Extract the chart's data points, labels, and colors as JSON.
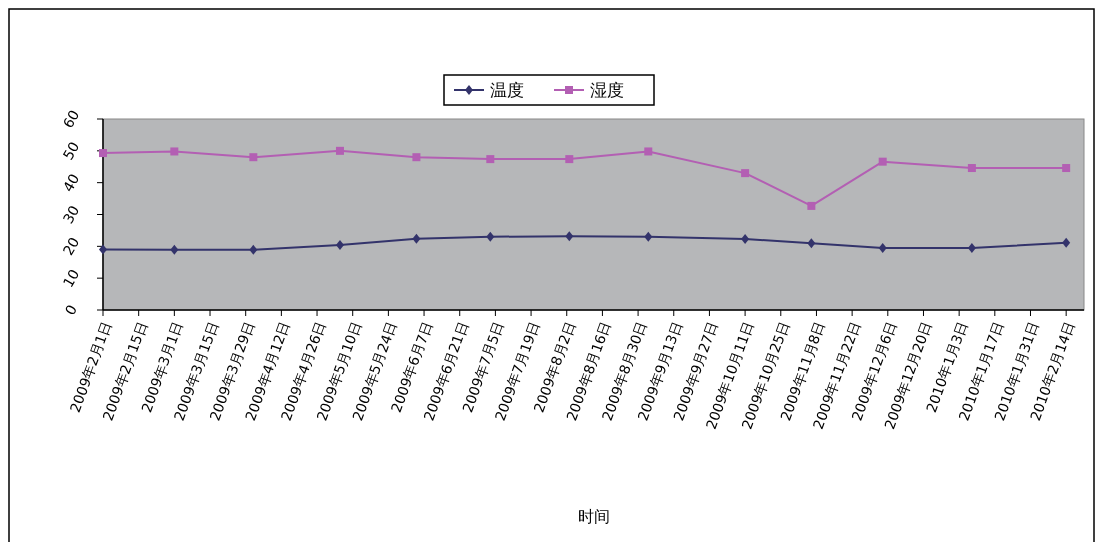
{
  "chart_data": {
    "type": "line",
    "xlabel": "时间",
    "legend": "top",
    "grid": false,
    "x": [
      "2009-02-01",
      "2009-03-01",
      "2009-04-01",
      "2009-05-05",
      "2009-06-04",
      "2009-07-03",
      "2009-08-03",
      "2009-09-03",
      "2009-10-11",
      "2009-11-06",
      "2009-12-04",
      "2010-01-08",
      "2010-02-14"
    ],
    "series": [
      {
        "name": "温度",
        "color": "#33336b",
        "marker": "diamond",
        "values": [
          19.0,
          18.9,
          18.9,
          20.4,
          22.4,
          23.0,
          23.2,
          23.0,
          22.3,
          21.0,
          19.5,
          19.5,
          21.1
        ]
      },
      {
        "name": "湿度",
        "color": "#b35fb3",
        "marker": "square",
        "values": [
          49.3,
          49.8,
          48.0,
          50.0,
          48.0,
          47.4,
          47.4,
          49.8,
          43.0,
          32.7,
          46.6,
          44.6,
          44.6
        ]
      }
    ],
    "ylim": [
      0,
      60
    ],
    "yticks": [
      0,
      10,
      20,
      30,
      40,
      50,
      60
    ],
    "xlim": [
      "2009-02-01",
      "2010-02-21"
    ],
    "xticks": [
      {
        "value": "2009-02-01",
        "label": "2009年2月1日"
      },
      {
        "value": "2009-02-15",
        "label": "2009年2月15日"
      },
      {
        "value": "2009-03-01",
        "label": "2009年3月1日"
      },
      {
        "value": "2009-03-15",
        "label": "2009年3月15日"
      },
      {
        "value": "2009-03-29",
        "label": "2009年3月29日"
      },
      {
        "value": "2009-04-12",
        "label": "2009年4月12日"
      },
      {
        "value": "2009-04-26",
        "label": "2009年4月26日"
      },
      {
        "value": "2009-05-10",
        "label": "2009年5月10日"
      },
      {
        "value": "2009-05-24",
        "label": "2009年5月24日"
      },
      {
        "value": "2009-06-07",
        "label": "2009年6月7日"
      },
      {
        "value": "2009-06-21",
        "label": "2009年6月21日"
      },
      {
        "value": "2009-07-05",
        "label": "2009年7月5日"
      },
      {
        "value": "2009-07-19",
        "label": "2009年7月19日"
      },
      {
        "value": "2009-08-02",
        "label": "2009年8月2日"
      },
      {
        "value": "2009-08-16",
        "label": "2009年8月16日"
      },
      {
        "value": "2009-08-30",
        "label": "2009年8月30日"
      },
      {
        "value": "2009-09-13",
        "label": "2009年9月13日"
      },
      {
        "value": "2009-09-27",
        "label": "2009年9月27日"
      },
      {
        "value": "2009-10-11",
        "label": "2009年10月11日"
      },
      {
        "value": "2009-10-25",
        "label": "2009年10月25日"
      },
      {
        "value": "2009-11-08",
        "label": "2009年11月8日"
      },
      {
        "value": "2009-11-22",
        "label": "2009年11月22日"
      },
      {
        "value": "2009-12-06",
        "label": "2009年12月6日"
      },
      {
        "value": "2009-12-20",
        "label": "2009年12月20日"
      },
      {
        "value": "2010-01-03",
        "label": "2010年1月3日"
      },
      {
        "value": "2010-01-17",
        "label": "2010年1月17日"
      },
      {
        "value": "2010-01-31",
        "label": "2010年1月31日"
      },
      {
        "value": "2010-02-14",
        "label": "2010年2月14日"
      }
    ]
  }
}
